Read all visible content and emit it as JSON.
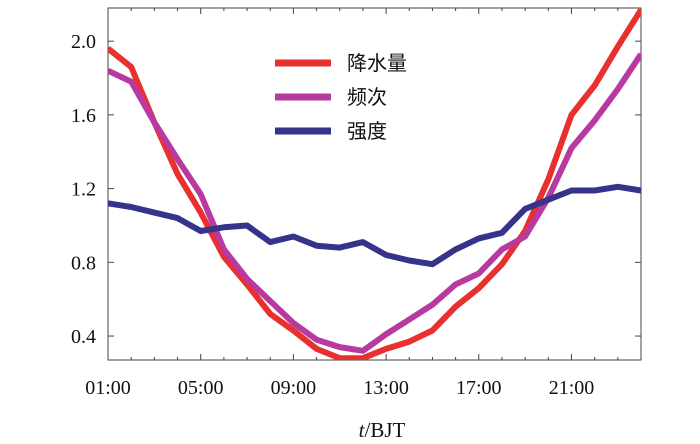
{
  "chart_data": {
    "type": "line",
    "title": "",
    "xlabel_var": "t",
    "xlabel_unit": "/BJT",
    "ylabel": "",
    "x": [
      1,
      2,
      3,
      4,
      5,
      6,
      7,
      8,
      9,
      10,
      11,
      12,
      13,
      14,
      15,
      16,
      17,
      18,
      19,
      20,
      21,
      22,
      23,
      24
    ],
    "xlim": [
      1,
      24
    ],
    "ylim": [
      0.27,
      2.18
    ],
    "x_ticks": [
      1,
      5,
      9,
      13,
      17,
      21
    ],
    "x_tick_labels": [
      "01:00",
      "05:00",
      "09:00",
      "13:00",
      "17:00",
      "21:00"
    ],
    "y_ticks": [
      0.4,
      0.8,
      1.2,
      1.6,
      2.0
    ],
    "y_tick_labels": [
      "0.4",
      "0.8",
      "1.2",
      "1.6",
      "2.0"
    ],
    "grid": false,
    "legend_position": "top-center",
    "series": [
      {
        "name": "降水量",
        "color": "#e8302f",
        "values": [
          1.96,
          1.86,
          1.56,
          1.28,
          1.07,
          0.83,
          0.68,
          0.52,
          0.43,
          0.33,
          0.28,
          0.28,
          0.33,
          0.37,
          0.43,
          0.56,
          0.66,
          0.79,
          0.97,
          1.25,
          1.6,
          1.76,
          1.97,
          2.17
        ]
      },
      {
        "name": "频次",
        "color": "#b83aa0",
        "values": [
          1.84,
          1.78,
          1.56,
          1.36,
          1.17,
          0.87,
          0.71,
          0.59,
          0.47,
          0.38,
          0.34,
          0.32,
          0.41,
          0.49,
          0.57,
          0.68,
          0.74,
          0.87,
          0.94,
          1.15,
          1.42,
          1.57,
          1.74,
          1.93
        ]
      },
      {
        "name": "强度",
        "color": "#35338a",
        "values": [
          1.12,
          1.1,
          1.07,
          1.04,
          0.97,
          0.99,
          1.0,
          0.91,
          0.94,
          0.89,
          0.88,
          0.91,
          0.84,
          0.81,
          0.79,
          0.87,
          0.93,
          0.96,
          1.09,
          1.14,
          1.19,
          1.19,
          1.21,
          1.19
        ]
      }
    ]
  }
}
